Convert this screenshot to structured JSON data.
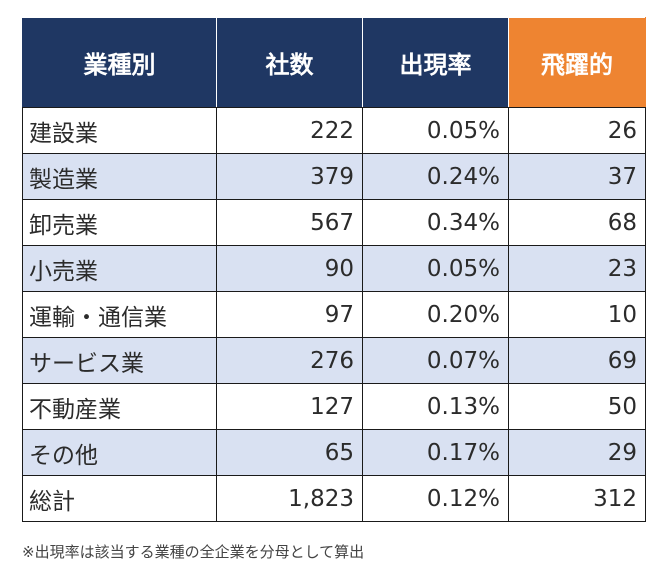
{
  "chart_data": {
    "type": "table",
    "columns": [
      "業種別",
      "社数",
      "出現率",
      "飛躍的"
    ],
    "highlight_column": 3,
    "colors": {
      "header": "#1f3763",
      "highlight": "#ee8431",
      "stripe": "#d9e1f2"
    },
    "rows": [
      [
        "建設業",
        "222",
        "0.05%",
        "26"
      ],
      [
        "製造業",
        "379",
        "0.24%",
        "37"
      ],
      [
        "卸売業",
        "567",
        "0.34%",
        "68"
      ],
      [
        "小売業",
        "90",
        "0.05%",
        "23"
      ],
      [
        "運輸・通信業",
        "97",
        "0.20%",
        "10"
      ],
      [
        "サービス業",
        "276",
        "0.07%",
        "69"
      ],
      [
        "不動産業",
        "127",
        "0.13%",
        "50"
      ],
      [
        "その他",
        "65",
        "0.17%",
        "29"
      ],
      [
        "総計",
        "1,823",
        "0.12%",
        "312"
      ]
    ]
  },
  "footnote": "※出現率は該当する業種の全企業を分母として算出"
}
